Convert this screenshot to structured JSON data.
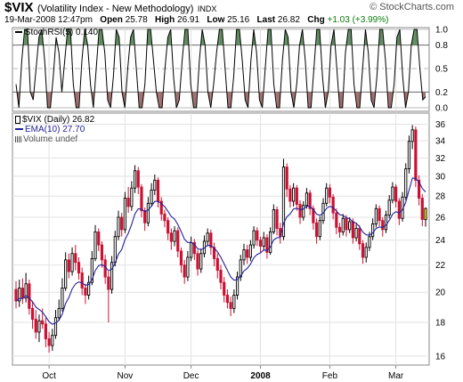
{
  "header": {
    "symbol": "$VIX",
    "name": "(Volatility Index - New Methodology)",
    "exchange": "INDX",
    "copyright": "© StockCharts.com",
    "date": "19-Mar-2008 12:47pm",
    "open_label": "Open",
    "open": "25.78",
    "high_label": "High",
    "high": "26.91",
    "low_label": "Low",
    "low": "25.16",
    "last_label": "Last",
    "last": "26.82",
    "chg_label": "Chg",
    "chg": "+1.03 (+3.99%)"
  },
  "colors": {
    "up": "#000000",
    "down": "#cc1133",
    "ema": "#22229a",
    "overbought_fill": "#5f8c5f",
    "oversold_fill": "#a07070",
    "last_highlight": "#ffff00"
  },
  "chart_data": [
    {
      "type": "line",
      "title": "StochRSI(5) 0.140",
      "series_name": "StochRSI(5)",
      "last_value": "0.140",
      "ylim": [
        0,
        1
      ],
      "yticks": [
        0.0,
        0.2,
        0.5,
        0.8,
        1.0
      ],
      "ytick_labels": [
        "0.0",
        "0.2",
        "0.5",
        "0.8",
        "1.0"
      ],
      "overbought": 0.8,
      "oversold": 0.2,
      "grid": true,
      "values": [
        0.3,
        0.0,
        0.6,
        1.0,
        1.0,
        0.2,
        0.1,
        0.5,
        0.9,
        1.0,
        0.6,
        0.0,
        0.0,
        0.4,
        0.9,
        0.7,
        0.2,
        0.6,
        1.0,
        1.0,
        0.3,
        0.0,
        0.0,
        0.6,
        1.0,
        0.8,
        0.3,
        0.0,
        0.5,
        1.0,
        1.0,
        0.7,
        0.1,
        0.0,
        0.4,
        1.0,
        0.9,
        0.2,
        0.0,
        0.5,
        0.9,
        1.0,
        0.5,
        0.0,
        0.0,
        0.3,
        1.0,
        1.0,
        0.6,
        0.2,
        0.0,
        0.0,
        0.5,
        0.9,
        1.0,
        0.4,
        0.0,
        0.1,
        0.6,
        1.0,
        1.0,
        0.3,
        0.0,
        0.0,
        0.6,
        1.0,
        0.8,
        0.2,
        0.0,
        0.3,
        0.7,
        1.0,
        1.0,
        0.5,
        0.0,
        0.0,
        0.4,
        1.0,
        1.0,
        0.6,
        0.1,
        0.0,
        0.6,
        1.0,
        0.7,
        0.1,
        0.0,
        0.5,
        1.0,
        1.0,
        0.3,
        0.0,
        0.0,
        0.6,
        1.0,
        0.9,
        0.2,
        0.0,
        0.3,
        0.8,
        1.0,
        0.6,
        0.0,
        0.0,
        0.5,
        1.0,
        1.0,
        0.4,
        0.0,
        0.2,
        0.8,
        1.0,
        0.5,
        0.0,
        0.0,
        0.7,
        1.0,
        1.0,
        0.3,
        0.0,
        0.0,
        0.5,
        1.0,
        0.7,
        0.1,
        0.0,
        0.4,
        1.0,
        1.0,
        0.6,
        0.0,
        0.0,
        0.3,
        0.9,
        1.0,
        0.4,
        0.0,
        0.2,
        0.8,
        1.0,
        1.0,
        0.5,
        0.1,
        0.14
      ]
    },
    {
      "type": "candlestick",
      "title": "$VIX (Daily) 26.82",
      "series_name": "$VIX (Daily)",
      "last_value": "26.82",
      "legend": [
        {
          "label": "EMA(10) 27.70",
          "kind": "line"
        },
        {
          "label": "Volume undef",
          "kind": "bars"
        }
      ],
      "ylim": [
        15.6,
        37.2
      ],
      "log_scale": true,
      "yticks": [
        16,
        18,
        20,
        22,
        24,
        26,
        28,
        30,
        32,
        34,
        36
      ],
      "grid": true,
      "xlabels": [
        {
          "label": "Oct",
          "i": 10,
          "bold": false
        },
        {
          "label": "Nov",
          "i": 33,
          "bold": false
        },
        {
          "label": "Dec",
          "i": 53,
          "bold": false
        },
        {
          "label": "2008",
          "i": 74,
          "bold": true
        },
        {
          "label": "Feb",
          "i": 95,
          "bold": false
        },
        {
          "label": "Mar",
          "i": 115,
          "bold": false
        }
      ],
      "candles": [
        [
          20.2,
          19.4,
          20.8,
          18.9
        ],
        [
          19.4,
          20.3,
          20.9,
          19.0
        ],
        [
          20.3,
          19.6,
          21.0,
          19.2
        ],
        [
          19.6,
          20.6,
          21.4,
          19.3
        ],
        [
          20.6,
          18.9,
          20.9,
          18.5
        ],
        [
          18.9,
          18.2,
          19.4,
          17.6
        ],
        [
          18.2,
          17.4,
          18.8,
          17.0
        ],
        [
          17.4,
          18.1,
          18.5,
          16.8
        ],
        [
          18.1,
          17.9,
          18.9,
          17.6
        ],
        [
          17.9,
          17.0,
          18.3,
          16.5
        ],
        [
          17.0,
          16.6,
          17.4,
          16.2
        ],
        [
          16.6,
          17.2,
          17.6,
          16.3
        ],
        [
          17.2,
          18.3,
          18.8,
          17.0
        ],
        [
          18.3,
          18.9,
          19.5,
          18.1
        ],
        [
          18.9,
          20.3,
          21.0,
          18.7
        ],
        [
          20.3,
          22.4,
          23.0,
          20.1
        ],
        [
          22.4,
          21.5,
          22.9,
          21.0
        ],
        [
          21.5,
          22.9,
          23.4,
          21.2
        ],
        [
          22.9,
          22.2,
          23.6,
          21.6
        ],
        [
          22.2,
          21.4,
          22.6,
          20.9
        ],
        [
          21.4,
          20.3,
          21.8,
          19.8
        ],
        [
          20.3,
          19.8,
          20.6,
          19.2
        ],
        [
          19.8,
          20.7,
          21.2,
          19.5
        ],
        [
          20.7,
          22.5,
          23.1,
          20.5
        ],
        [
          22.5,
          24.7,
          25.3,
          22.3
        ],
        [
          24.7,
          23.6,
          25.0,
          23.1
        ],
        [
          23.6,
          22.4,
          23.9,
          21.8
        ],
        [
          22.4,
          21.1,
          22.8,
          20.6
        ],
        [
          21.1,
          20.2,
          21.5,
          18.0
        ],
        [
          20.2,
          22.2,
          22.7,
          19.9
        ],
        [
          22.2,
          24.3,
          24.8,
          21.9
        ],
        [
          24.3,
          26.0,
          26.6,
          24.0
        ],
        [
          26.0,
          24.9,
          26.4,
          24.3
        ],
        [
          24.9,
          27.8,
          28.4,
          24.6
        ],
        [
          27.8,
          27.0,
          28.9,
          26.4
        ],
        [
          27.0,
          28.8,
          29.5,
          26.6
        ],
        [
          28.8,
          30.6,
          31.2,
          28.3
        ],
        [
          30.6,
          28.9,
          31.0,
          28.2
        ],
        [
          28.9,
          26.6,
          29.2,
          26.0
        ],
        [
          26.6,
          25.5,
          26.9,
          24.8
        ],
        [
          25.5,
          27.3,
          27.9,
          25.2
        ],
        [
          27.3,
          28.6,
          29.3,
          27.0
        ],
        [
          28.6,
          29.6,
          30.2,
          28.1
        ],
        [
          29.6,
          27.5,
          29.9,
          26.9
        ],
        [
          27.5,
          26.3,
          27.9,
          25.7
        ],
        [
          26.3,
          25.7,
          26.7,
          25.1
        ],
        [
          25.7,
          24.6,
          26.0,
          24.0
        ],
        [
          24.6,
          23.9,
          25.0,
          23.2
        ],
        [
          23.9,
          24.8,
          25.2,
          23.5
        ],
        [
          24.8,
          23.1,
          25.1,
          22.6
        ],
        [
          23.1,
          22.0,
          23.4,
          21.4
        ],
        [
          22.0,
          21.1,
          22.4,
          20.6
        ],
        [
          21.1,
          22.6,
          23.1,
          20.8
        ],
        [
          22.6,
          23.8,
          24.3,
          22.3
        ],
        [
          23.8,
          22.9,
          24.1,
          22.4
        ],
        [
          22.9,
          21.7,
          23.2,
          21.2
        ],
        [
          21.7,
          22.9,
          23.3,
          21.4
        ],
        [
          22.9,
          23.9,
          24.4,
          22.6
        ],
        [
          23.9,
          24.6,
          25.0,
          23.5
        ],
        [
          24.6,
          23.4,
          24.9,
          22.8
        ],
        [
          23.4,
          22.5,
          23.8,
          21.9
        ],
        [
          22.5,
          21.6,
          22.9,
          21.0
        ],
        [
          21.6,
          20.7,
          22.0,
          20.2
        ],
        [
          20.7,
          19.8,
          21.1,
          19.3
        ],
        [
          19.8,
          19.3,
          20.2,
          18.9
        ],
        [
          19.3,
          18.9,
          19.7,
          18.4
        ],
        [
          18.9,
          19.8,
          20.2,
          18.6
        ],
        [
          19.8,
          21.1,
          21.5,
          19.5
        ],
        [
          21.1,
          22.4,
          22.8,
          20.8
        ],
        [
          22.4,
          23.2,
          23.7,
          22.0
        ],
        [
          23.2,
          22.6,
          23.6,
          22.1
        ],
        [
          22.6,
          23.6,
          24.0,
          22.3
        ],
        [
          23.6,
          24.8,
          25.2,
          23.3
        ],
        [
          24.8,
          24.0,
          25.1,
          23.5
        ],
        [
          24.0,
          23.5,
          24.3,
          23.0
        ],
        [
          23.5,
          24.2,
          24.7,
          23.2
        ],
        [
          24.2,
          23.0,
          24.5,
          22.5
        ],
        [
          23.0,
          24.7,
          25.1,
          22.8
        ],
        [
          24.7,
          26.7,
          27.2,
          24.5
        ],
        [
          26.7,
          25.0,
          27.0,
          24.4
        ],
        [
          25.0,
          24.3,
          25.5,
          23.7
        ],
        [
          24.3,
          31.0,
          31.9,
          24.0
        ],
        [
          31.0,
          28.7,
          31.4,
          27.9
        ],
        [
          28.7,
          27.5,
          29.1,
          26.9
        ],
        [
          27.5,
          28.8,
          29.3,
          27.0
        ],
        [
          28.8,
          27.2,
          29.1,
          26.6
        ],
        [
          27.2,
          26.0,
          27.6,
          25.4
        ],
        [
          26.0,
          27.1,
          27.5,
          25.7
        ],
        [
          27.1,
          28.3,
          28.8,
          26.8
        ],
        [
          28.3,
          26.8,
          28.6,
          26.2
        ],
        [
          26.8,
          25.5,
          27.1,
          24.9
        ],
        [
          25.5,
          24.3,
          25.9,
          23.7
        ],
        [
          24.3,
          25.7,
          26.1,
          24.0
        ],
        [
          25.7,
          27.3,
          27.8,
          25.4
        ],
        [
          27.3,
          28.8,
          29.3,
          27.0
        ],
        [
          28.8,
          27.9,
          29.2,
          27.3
        ],
        [
          27.9,
          26.4,
          28.2,
          25.8
        ],
        [
          26.4,
          25.1,
          26.8,
          24.5
        ],
        [
          25.1,
          24.7,
          25.5,
          24.2
        ],
        [
          24.7,
          25.9,
          26.3,
          24.4
        ],
        [
          25.9,
          24.9,
          26.2,
          24.3
        ],
        [
          24.9,
          25.6,
          26.0,
          24.6
        ],
        [
          25.6,
          24.2,
          25.9,
          23.7
        ],
        [
          24.2,
          25.0,
          25.4,
          23.9
        ],
        [
          25.0,
          23.7,
          25.3,
          23.2
        ],
        [
          23.7,
          22.6,
          24.0,
          22.1
        ],
        [
          22.6,
          23.4,
          23.8,
          22.2
        ],
        [
          23.4,
          24.3,
          24.7,
          23.1
        ],
        [
          24.3,
          25.4,
          25.9,
          24.0
        ],
        [
          25.4,
          26.8,
          27.2,
          25.1
        ],
        [
          26.8,
          25.7,
          27.1,
          25.2
        ],
        [
          25.7,
          24.9,
          26.0,
          24.3
        ],
        [
          24.9,
          26.2,
          26.6,
          24.6
        ],
        [
          26.2,
          27.6,
          28.1,
          25.9
        ],
        [
          27.6,
          28.9,
          29.4,
          27.3
        ],
        [
          28.9,
          27.5,
          29.2,
          26.9
        ],
        [
          27.5,
          25.9,
          27.8,
          25.3
        ],
        [
          25.9,
          27.9,
          28.4,
          25.6
        ],
        [
          27.9,
          30.8,
          31.4,
          27.6
        ],
        [
          30.8,
          33.9,
          34.6,
          30.3
        ],
        [
          33.9,
          35.3,
          35.9,
          33.0
        ],
        [
          35.3,
          29.6,
          35.7,
          28.9
        ],
        [
          29.6,
          27.8,
          30.1,
          27.1
        ],
        [
          27.8,
          25.8,
          28.2,
          25.2
        ],
        [
          25.79,
          26.82,
          26.91,
          25.16
        ]
      ]
    }
  ]
}
